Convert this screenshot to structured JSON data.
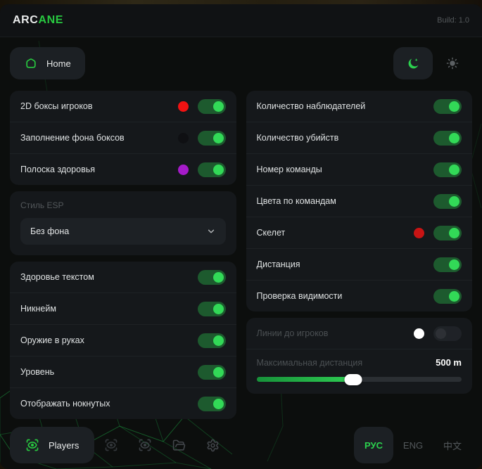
{
  "header": {
    "brand_white": "ARC",
    "brand_green": "ANE",
    "build_label": "Build: 1.0"
  },
  "nav": {
    "home_label": "Home"
  },
  "esp_left": {
    "rows_colored": [
      {
        "label": "2D боксы игроков",
        "color": "#f21212",
        "enabled": true
      },
      {
        "label": "Заполнение фона боксов",
        "color": "#0f1013",
        "enabled": true
      },
      {
        "label": "Полоска здоровья",
        "color": "#a51bc9",
        "enabled": true
      }
    ],
    "style_select": {
      "label": "Стиль ESP",
      "value": "Без фона"
    },
    "rows_plain": [
      {
        "label": "Здоровье текстом",
        "enabled": true
      },
      {
        "label": "Никнейм",
        "enabled": true
      },
      {
        "label": "Оружие в руках",
        "enabled": true
      },
      {
        "label": "Уровень",
        "enabled": true
      },
      {
        "label": "Отображать нокнутых",
        "enabled": true
      }
    ]
  },
  "esp_right": {
    "rows": [
      {
        "label": "Количество наблюдателей",
        "enabled": true
      },
      {
        "label": "Количество убийств",
        "enabled": true
      },
      {
        "label": "Номер команды",
        "enabled": true
      },
      {
        "label": "Цвета по командам",
        "enabled": true
      },
      {
        "label": "Скелет",
        "color": "#c81414",
        "enabled": true
      },
      {
        "label": "Дистанция",
        "enabled": true
      },
      {
        "label": "Проверка видимости",
        "enabled": true
      }
    ],
    "lines_row": {
      "label": "Линии до игроков",
      "color": "#ffffff",
      "enabled": false
    },
    "max_distance": {
      "label": "Максимальная дистанция",
      "value": "500 m",
      "percent": 47
    }
  },
  "footer": {
    "players_label": "Players",
    "languages": [
      {
        "label": "РУС",
        "active": true
      },
      {
        "label": "ENG",
        "active": false
      },
      {
        "label": "中文",
        "active": false
      }
    ]
  },
  "colors": {
    "accent_green": "#28c840",
    "toggle_knob_on": "#32d957",
    "toggle_track_on": "#1d5a2e",
    "panel_bg": "#15181b",
    "page_bg": "#0c0e0d"
  }
}
